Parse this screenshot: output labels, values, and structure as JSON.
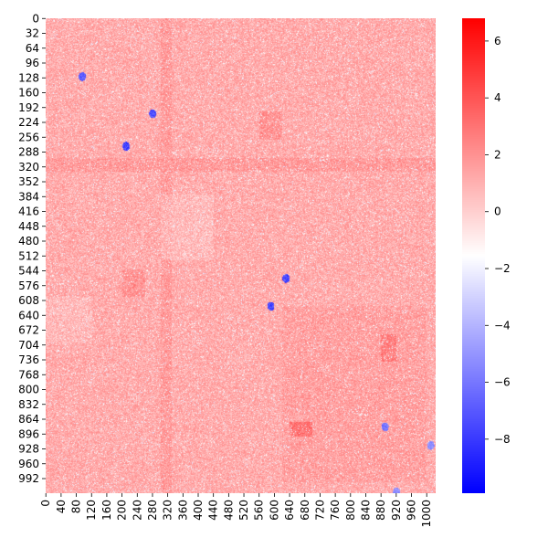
{
  "chart_data": {
    "type": "heatmap",
    "title": "",
    "xlabel": "",
    "ylabel": "",
    "matrix_size": 1024,
    "x_tick_labels": [
      "0",
      "40",
      "80",
      "120",
      "160",
      "200",
      "240",
      "280",
      "320",
      "360",
      "400",
      "440",
      "480",
      "520",
      "560",
      "600",
      "640",
      "680",
      "720",
      "760",
      "800",
      "840",
      "880",
      "920",
      "960",
      "1000"
    ],
    "y_tick_labels": [
      "0",
      "32",
      "64",
      "96",
      "128",
      "160",
      "192",
      "224",
      "256",
      "288",
      "320",
      "352",
      "384",
      "416",
      "448",
      "480",
      "512",
      "544",
      "576",
      "608",
      "640",
      "672",
      "704",
      "736",
      "768",
      "800",
      "832",
      "864",
      "896",
      "928",
      "960",
      "992"
    ],
    "colorbar": {
      "colormap": "bwr",
      "vmin": -9.9,
      "vmax": 6.8,
      "ticks": [
        6,
        4,
        2,
        0,
        -2,
        -4,
        -6,
        -8
      ],
      "tick_labels": [
        "6",
        "4",
        "2",
        "0",
        "−2",
        "−4",
        "−6",
        "−8"
      ]
    },
    "typical_value": 1.2,
    "features": {
      "blocks": [
        {
          "rows": [
            620,
            1000
          ],
          "cols": [
            620,
            1000
          ],
          "value": 1.8
        },
        {
          "rows": [
            300,
            330
          ],
          "cols": [
            0,
            1024
          ],
          "value": 2.0
        },
        {
          "rows": [
            0,
            1024
          ],
          "cols": [
            300,
            330
          ],
          "value": 2.0
        },
        {
          "rows": [
            870,
            900
          ],
          "cols": [
            640,
            700
          ],
          "value": 3.5
        },
        {
          "rows": [
            680,
            740
          ],
          "cols": [
            880,
            920
          ],
          "value": 3.0
        },
        {
          "rows": [
            540,
            600
          ],
          "cols": [
            200,
            260
          ],
          "value": 2.3
        },
        {
          "rows": [
            200,
            260
          ],
          "cols": [
            560,
            620
          ],
          "value": 2.3
        }
      ],
      "light_regions": [
        {
          "rows": [
            380,
            520
          ],
          "cols": [
            300,
            440
          ],
          "value": 0.2
        },
        {
          "rows": [
            600,
            700
          ],
          "cols": [
            0,
            120
          ],
          "value": 0.4
        }
      ],
      "negative_spots": [
        {
          "row": 125,
          "col": 95,
          "value": -8
        },
        {
          "row": 205,
          "col": 280,
          "value": -8.5
        },
        {
          "row": 275,
          "col": 210,
          "value": -9
        },
        {
          "row": 560,
          "col": 630,
          "value": -8.5
        },
        {
          "row": 620,
          "col": 590,
          "value": -9
        },
        {
          "row": 880,
          "col": 890,
          "value": -7
        },
        {
          "row": 920,
          "col": 1010,
          "value": -6
        },
        {
          "row": 1020,
          "col": 920,
          "value": -6
        }
      ]
    }
  }
}
